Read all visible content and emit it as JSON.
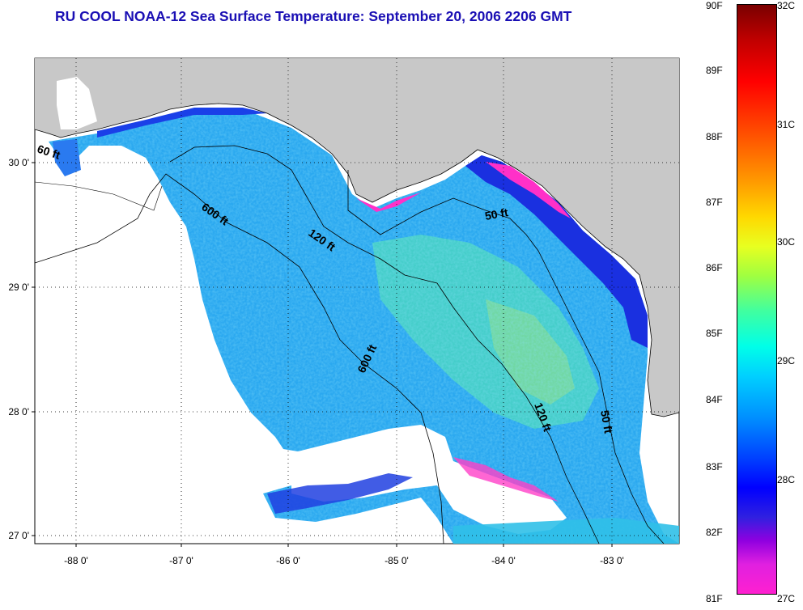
{
  "title": "RU COOL  NOAA-12  Sea Surface Temperature:  September 20, 2006 2206 GMT",
  "map": {
    "lon_ticks": [
      "-88 0'",
      "-87 0'",
      "-86 0'",
      "-85 0'",
      "-84 0'",
      "-83 0'"
    ],
    "lat_ticks": [
      "30 0'",
      "29 0'",
      "28 0'",
      "27 0'"
    ],
    "contour_labels": [
      "60 ft",
      "600 ft",
      "120 ft",
      "50 ft",
      "600 ft",
      "120 ft",
      "50 ft"
    ],
    "colors": {
      "land": "#c8c8c8",
      "cloud": "#ffffff",
      "ocean_base": "#2aa8f0"
    }
  },
  "colorbar": {
    "fahrenheit": [
      "90F",
      "89F",
      "88F",
      "87F",
      "86F",
      "85F",
      "84F",
      "83F",
      "82F",
      "81F"
    ],
    "celsius": [
      "32C",
      "31C",
      "30C",
      "29C",
      "28C",
      "27C"
    ]
  }
}
